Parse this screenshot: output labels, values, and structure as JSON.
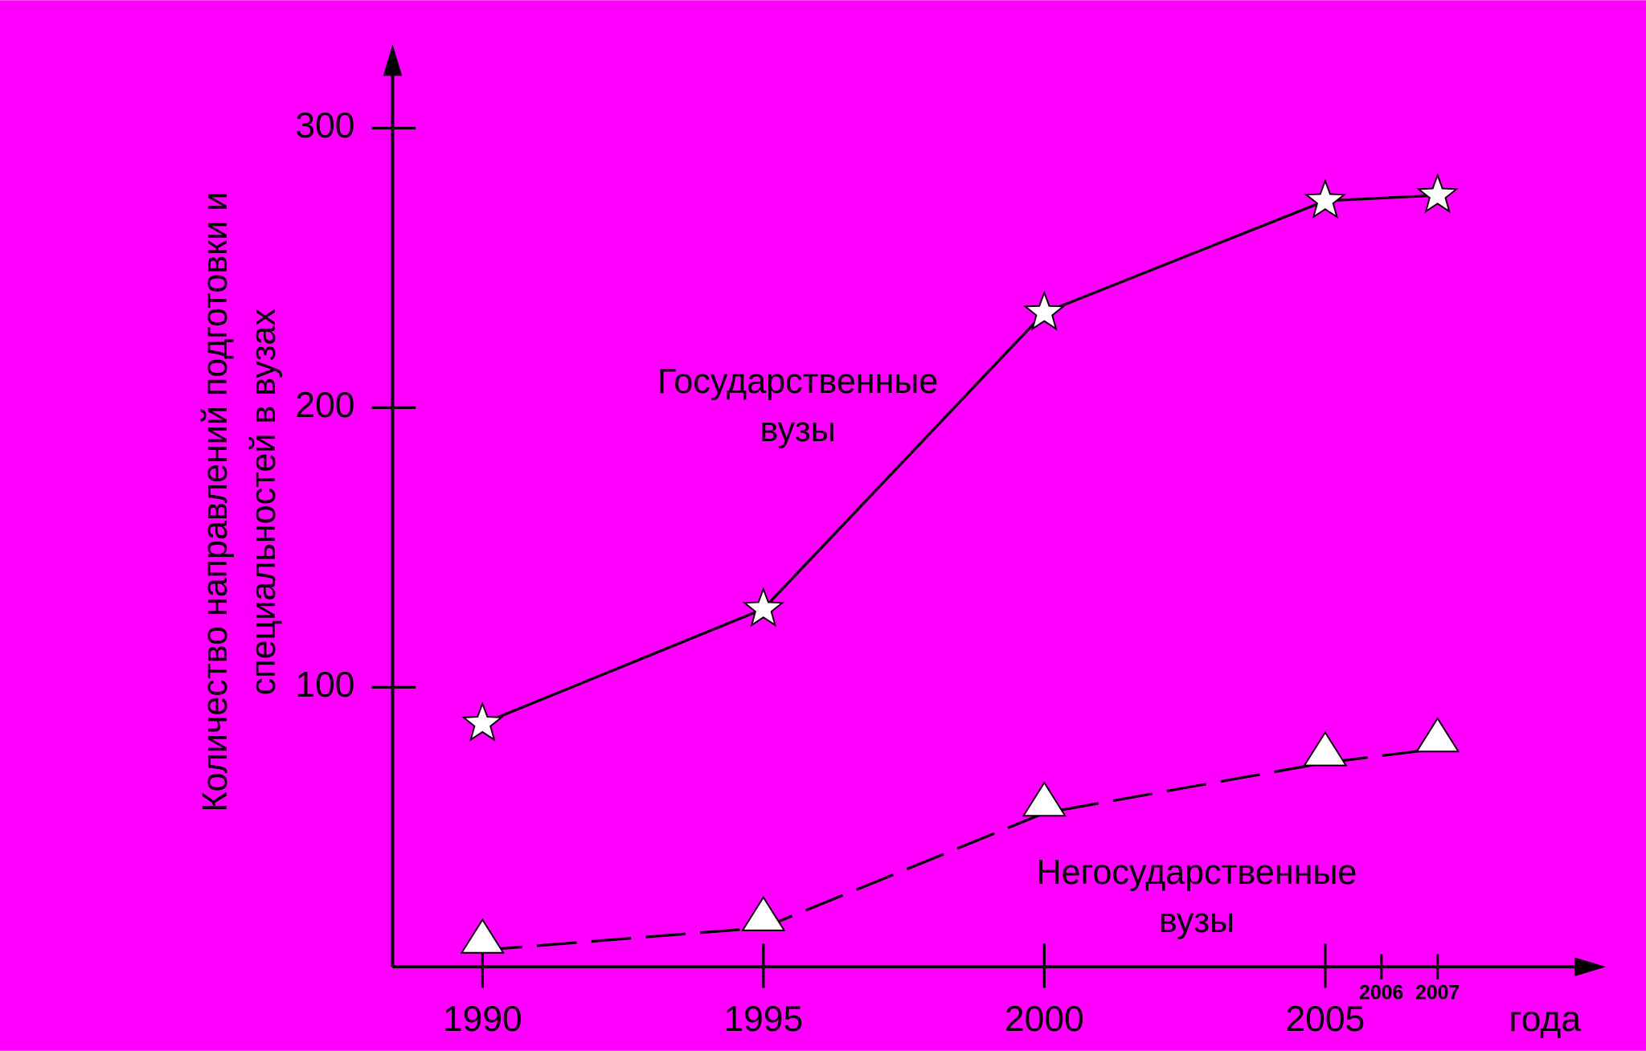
{
  "chart_data": {
    "type": "line",
    "y_label": [
      "Количество направлений подготовки и",
      "специальностей в вузах"
    ],
    "x_label": "года",
    "x": [
      1990,
      1995,
      2000,
      2005,
      2007
    ],
    "series": [
      {
        "name": "Государственные вузы",
        "color": "#000000",
        "dash": false,
        "marker": "star",
        "values": [
          87,
          128,
          234,
          274,
          276
        ]
      },
      {
        "name": "Негосударственные вузы",
        "color": "#000000",
        "dash": true,
        "marker": "triangle",
        "values": [
          6,
          14,
          55,
          73,
          78
        ]
      }
    ],
    "xlim": [
      1988.4,
      2010
    ],
    "ylim": [
      0,
      330
    ],
    "xticks": [
      1990,
      1995,
      2000,
      2005,
      2006,
      2007
    ],
    "yticks": [
      100,
      200,
      300
    ],
    "background": "#ff00ff"
  }
}
